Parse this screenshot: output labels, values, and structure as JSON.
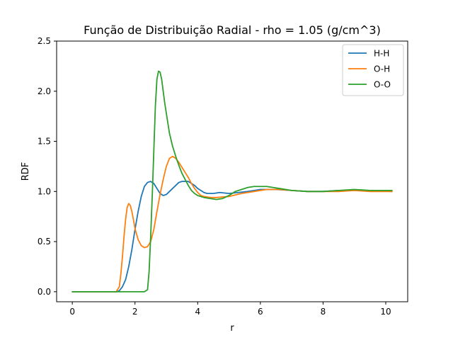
{
  "chart_data": {
    "type": "line",
    "title": "Função de Distribuição Radial - rho = 1.05 (g/cm^3)",
    "xlabel": "r",
    "ylabel": "RDF",
    "xlim": [
      -0.5,
      10.7
    ],
    "ylim": [
      -0.1,
      2.5
    ],
    "xticks": [
      0,
      2,
      4,
      6,
      8,
      10
    ],
    "yticks": [
      0.0,
      0.5,
      1.0,
      1.5,
      2.0,
      2.5
    ],
    "xtick_labels": [
      "0",
      "2",
      "4",
      "6",
      "8",
      "10"
    ],
    "ytick_labels": [
      "0.0",
      "0.5",
      "1.0",
      "1.5",
      "2.0",
      "2.5"
    ],
    "grid": false,
    "legend_position": "top-right",
    "series": [
      {
        "name": "H-H",
        "color": "#1f77b4",
        "x": [
          0,
          1.4,
          1.5,
          1.6,
          1.7,
          1.8,
          1.9,
          2.0,
          2.1,
          2.2,
          2.3,
          2.4,
          2.5,
          2.6,
          2.7,
          2.8,
          2.9,
          3.0,
          3.1,
          3.2,
          3.3,
          3.4,
          3.5,
          3.6,
          3.7,
          3.8,
          3.9,
          4.0,
          4.1,
          4.2,
          4.3,
          4.5,
          4.7,
          5.0,
          5.3,
          5.6,
          6.0,
          6.5,
          7.0,
          7.5,
          8.0,
          8.5,
          9.0,
          9.5,
          10.2
        ],
        "y": [
          0.0,
          0.0,
          0.01,
          0.05,
          0.12,
          0.25,
          0.42,
          0.62,
          0.8,
          0.95,
          1.05,
          1.09,
          1.1,
          1.08,
          1.03,
          0.98,
          0.96,
          0.97,
          1.0,
          1.03,
          1.06,
          1.09,
          1.1,
          1.1,
          1.1,
          1.08,
          1.06,
          1.03,
          1.01,
          0.99,
          0.98,
          0.98,
          0.99,
          0.98,
          0.99,
          1.0,
          1.02,
          1.02,
          1.01,
          1.0,
          1.0,
          1.01,
          1.01,
          1.01,
          1.0
        ]
      },
      {
        "name": "O-H",
        "color": "#ff7f0e",
        "x": [
          0,
          1.4,
          1.5,
          1.55,
          1.6,
          1.65,
          1.7,
          1.75,
          1.8,
          1.85,
          1.9,
          1.95,
          2.0,
          2.1,
          2.2,
          2.3,
          2.4,
          2.5,
          2.6,
          2.7,
          2.8,
          2.9,
          3.0,
          3.1,
          3.2,
          3.3,
          3.4,
          3.5,
          3.6,
          3.7,
          3.8,
          3.9,
          4.0,
          4.1,
          4.2,
          4.4,
          4.6,
          5.0,
          5.4,
          5.8,
          6.2,
          6.6,
          7.0,
          7.5,
          8.0,
          8.5,
          9.0,
          9.5,
          10.2
        ],
        "y": [
          0.0,
          0.0,
          0.05,
          0.18,
          0.35,
          0.55,
          0.72,
          0.84,
          0.88,
          0.86,
          0.8,
          0.72,
          0.63,
          0.52,
          0.46,
          0.44,
          0.45,
          0.5,
          0.62,
          0.8,
          0.97,
          1.12,
          1.25,
          1.33,
          1.35,
          1.33,
          1.29,
          1.24,
          1.19,
          1.14,
          1.08,
          1.03,
          0.99,
          0.96,
          0.95,
          0.94,
          0.94,
          0.95,
          0.98,
          1.0,
          1.02,
          1.02,
          1.01,
          1.0,
          1.0,
          1.0,
          1.01,
          1.0,
          1.0
        ]
      },
      {
        "name": "O-O",
        "color": "#2ca02c",
        "x": [
          0,
          2.3,
          2.4,
          2.45,
          2.5,
          2.55,
          2.6,
          2.65,
          2.7,
          2.75,
          2.8,
          2.85,
          2.9,
          2.95,
          3.0,
          3.05,
          3.1,
          3.2,
          3.3,
          3.4,
          3.5,
          3.6,
          3.7,
          3.8,
          3.9,
          4.0,
          4.2,
          4.4,
          4.6,
          4.8,
          5.0,
          5.2,
          5.4,
          5.6,
          5.8,
          6.0,
          6.2,
          6.4,
          6.6,
          7.0,
          7.5,
          8.0,
          8.5,
          9.0,
          9.5,
          10.2
        ],
        "y": [
          0.0,
          0.0,
          0.02,
          0.2,
          0.55,
          0.95,
          1.4,
          1.85,
          2.12,
          2.2,
          2.19,
          2.12,
          2.0,
          1.88,
          1.78,
          1.68,
          1.58,
          1.45,
          1.35,
          1.26,
          1.18,
          1.12,
          1.06,
          1.01,
          0.98,
          0.96,
          0.94,
          0.93,
          0.92,
          0.93,
          0.96,
          1.0,
          1.02,
          1.04,
          1.05,
          1.05,
          1.05,
          1.04,
          1.03,
          1.01,
          1.0,
          1.0,
          1.01,
          1.02,
          1.01,
          1.01
        ]
      }
    ]
  }
}
